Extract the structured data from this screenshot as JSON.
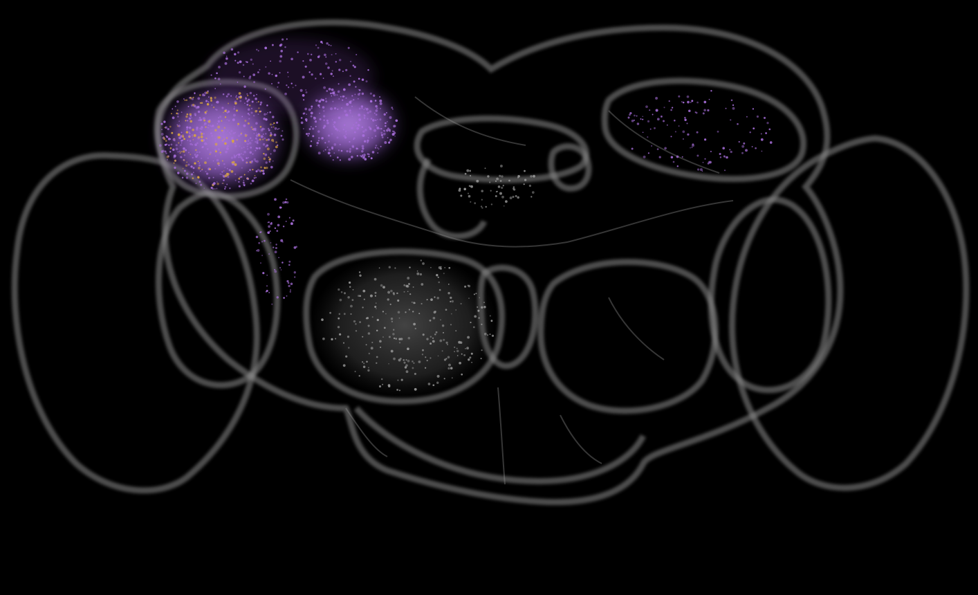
{
  "viewer": {
    "background": "#000000",
    "subject": "brain-neuropil-3d-render"
  },
  "colors": {
    "outline": "#8c8c8c",
    "neuron_purple": "#a86fdc",
    "neuron_orange": "#d9a441",
    "neuron_grey": "#9a9a9a"
  },
  "labels": []
}
